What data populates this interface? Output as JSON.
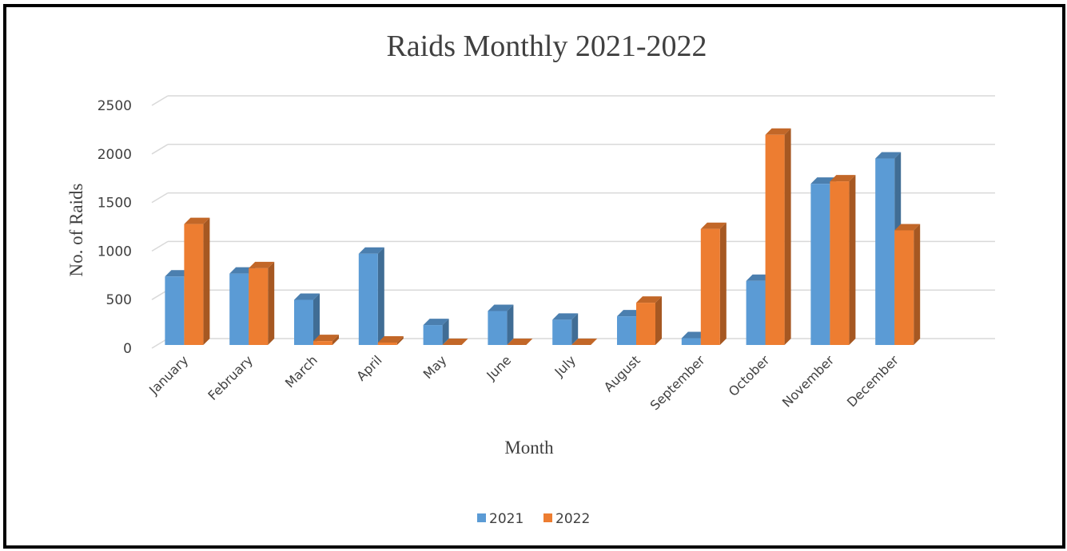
{
  "chart_data": {
    "type": "bar",
    "title": "Raids Monthly 2021-2022",
    "xlabel": "Month",
    "ylabel": "No. of Raids",
    "ylim": [
      0,
      2500
    ],
    "yticks": [
      0,
      500,
      1000,
      1500,
      2000,
      2500
    ],
    "grid": true,
    "legend_position": "bottom",
    "categories": [
      "January",
      "February",
      "March",
      "April",
      "May",
      "June",
      "July",
      "August",
      "September",
      "October",
      "November",
      "December"
    ],
    "series": [
      {
        "name": "2021",
        "color": "#5B9BD5",
        "values": [
          705,
          735,
          465,
          940,
          205,
          350,
          260,
          295,
          70,
          660,
          1660,
          1920
        ]
      },
      {
        "name": "2022",
        "color": "#ED7D31",
        "values": [
          1245,
          790,
          40,
          25,
          0,
          0,
          0,
          435,
          1195,
          2165,
          1685,
          1180
        ]
      }
    ]
  }
}
